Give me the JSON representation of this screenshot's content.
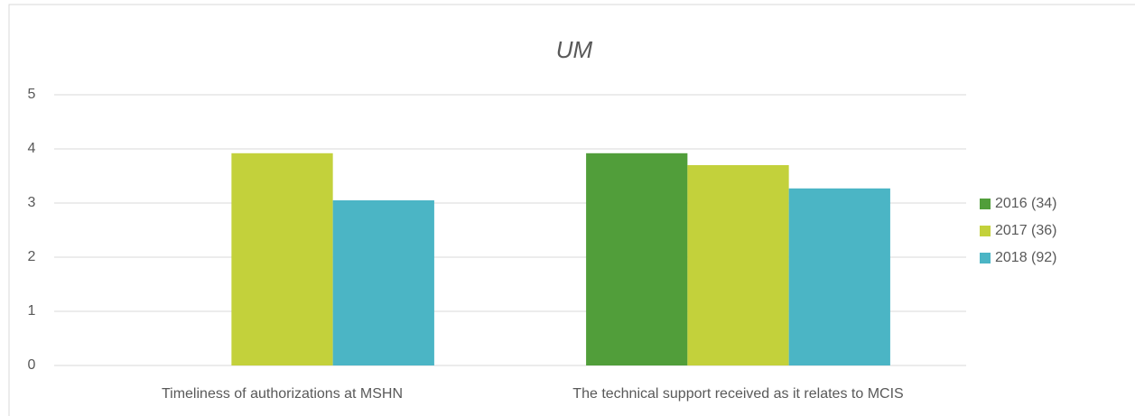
{
  "chart_data": {
    "type": "bar",
    "title": "UM",
    "categories": [
      "Timeliness of authorizations at MSHN",
      "The technical support received as it relates to MCIS"
    ],
    "series": [
      {
        "name": "2016 (34)",
        "color": "#519e3a",
        "values": [
          null,
          3.92
        ]
      },
      {
        "name": "2017 (36)",
        "color": "#c3d13b",
        "values": [
          3.92,
          3.7
        ]
      },
      {
        "name": "2018 (92)",
        "color": "#4bb5c5",
        "values": [
          3.05,
          3.27
        ]
      }
    ],
    "ylim": [
      0,
      5
    ],
    "yticks": [
      0,
      1,
      2,
      3,
      4,
      5
    ],
    "grid": true,
    "legend": "right"
  }
}
